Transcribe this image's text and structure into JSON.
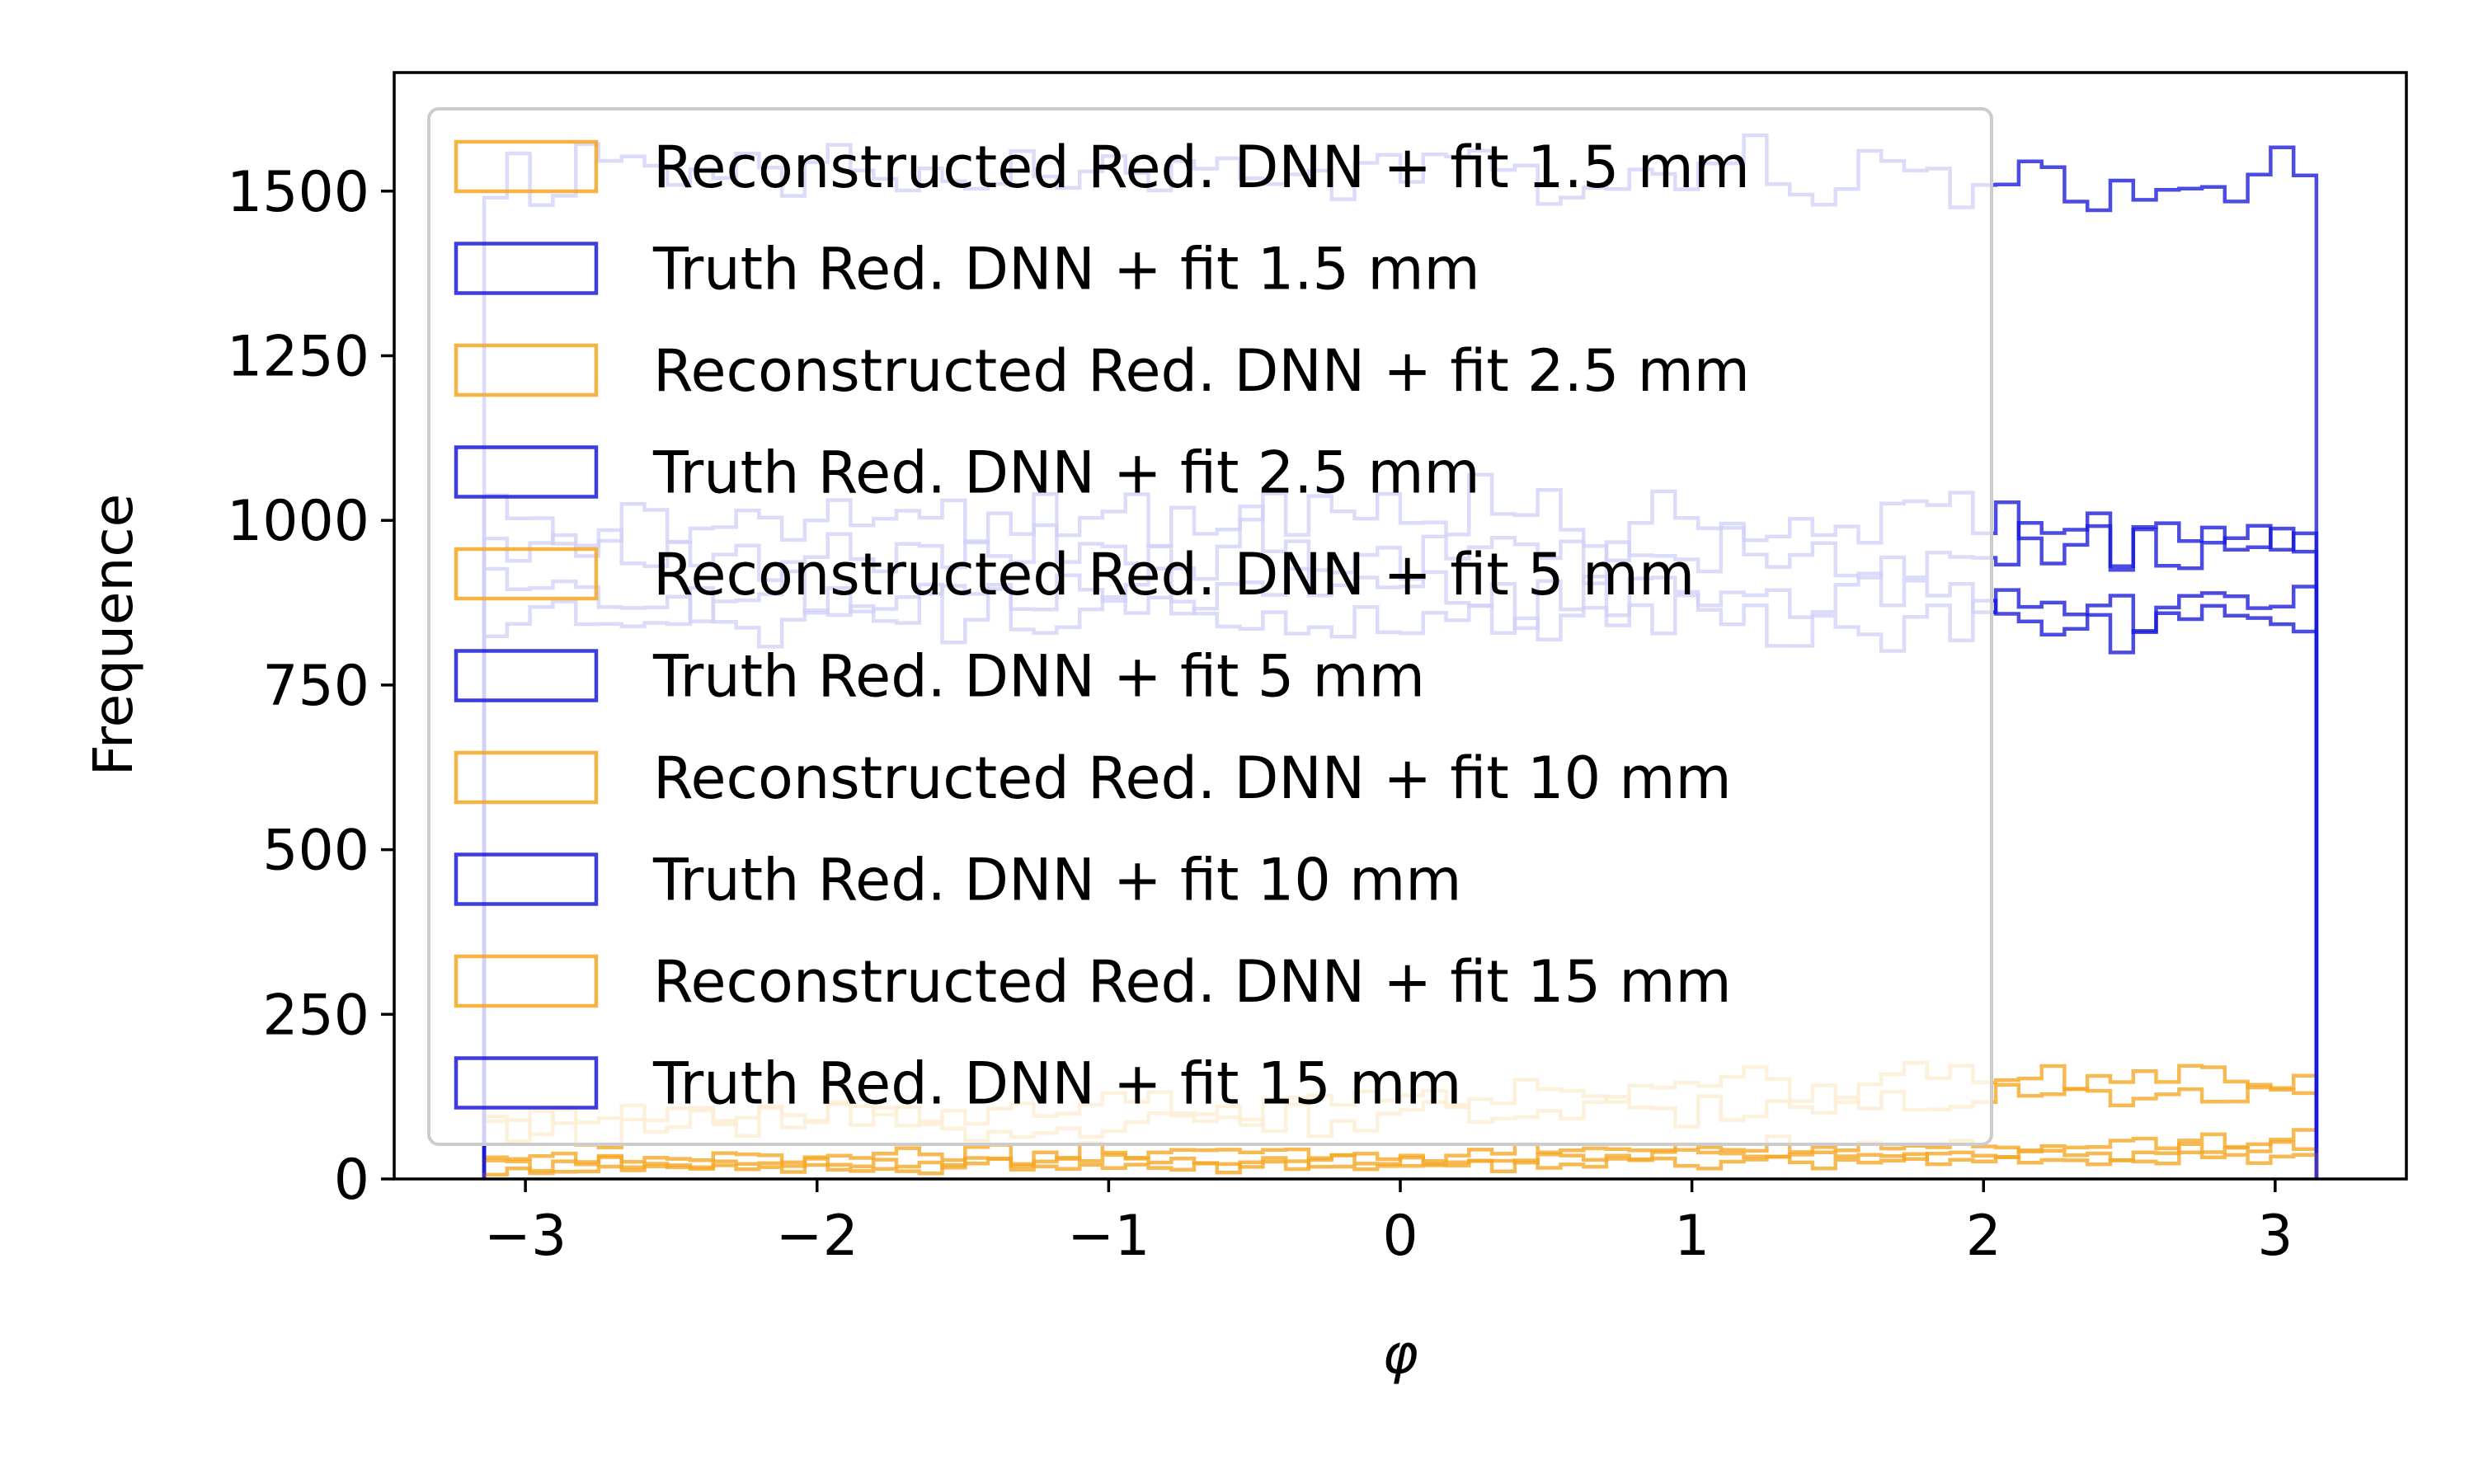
{
  "chart_data": {
    "type": "histogram-step",
    "xlabel": "φ",
    "ylabel": "Frequence",
    "xlim": [
      -3.45,
      3.45
    ],
    "ylim": [
      0,
      1680
    ],
    "xticks": [
      -3,
      -2,
      -1,
      0,
      1,
      2,
      3
    ],
    "xtick_labels": [
      "−3",
      "−2",
      "−1",
      "0",
      "1",
      "2",
      "3"
    ],
    "yticks": [
      0,
      250,
      500,
      750,
      1000,
      1250,
      1500
    ],
    "ytick_labels": [
      "0",
      "250",
      "500",
      "750",
      "1000",
      "1250",
      "1500"
    ],
    "bin_range": [
      -3.1416,
      3.1416
    ],
    "bin_count": 80,
    "legend": {
      "placement": "upper-left",
      "frame": true
    },
    "colors": {
      "reconstructed": "#f5a623",
      "truth": "#1a1adb"
    },
    "series": [
      {
        "name": "Reconstructed Red. DNN + fit 1.5 mm",
        "kind": "reconstructed",
        "color": "#f5a623",
        "profile": {
          "left": 90,
          "mid": 120,
          "right": 165
        },
        "noise": 22
      },
      {
        "name": "Truth Red. DNN + fit 1.5 mm",
        "kind": "truth",
        "color": "#1a1adb",
        "profile": {
          "left": 1520,
          "mid": 1525,
          "right": 1510
        },
        "noise": 40
      },
      {
        "name": "Reconstructed Red. DNN + fit 2.5 mm",
        "kind": "reconstructed",
        "color": "#f5a623",
        "profile": {
          "left": 70,
          "mid": 95,
          "right": 135
        },
        "noise": 20
      },
      {
        "name": "Truth Red. DNN + fit 2.5 mm",
        "kind": "truth",
        "color": "#1a1adb",
        "profile": {
          "left": 990,
          "mid": 1000,
          "right": 985
        },
        "noise": 40
      },
      {
        "name": "Reconstructed Red. DNN + fit 5 mm",
        "kind": "reconstructed",
        "color": "#f5a623",
        "profile": {
          "left": 30,
          "mid": 40,
          "right": 60
        },
        "noise": 12
      },
      {
        "name": "Truth Red. DNN + fit 5 mm",
        "kind": "truth",
        "color": "#1a1adb",
        "profile": {
          "left": 950,
          "mid": 960,
          "right": 955
        },
        "noise": 40
      },
      {
        "name": "Reconstructed Red. DNN + fit 10 mm",
        "kind": "reconstructed",
        "color": "#f5a623",
        "profile": {
          "left": 20,
          "mid": 28,
          "right": 45
        },
        "noise": 9
      },
      {
        "name": "Truth Red. DNN + fit 10 mm",
        "kind": "truth",
        "color": "#1a1adb",
        "profile": {
          "left": 880,
          "mid": 890,
          "right": 870
        },
        "noise": 38
      },
      {
        "name": "Reconstructed Red. DNN + fit 15 mm",
        "kind": "reconstructed",
        "color": "#f5a623",
        "profile": {
          "left": 15,
          "mid": 22,
          "right": 35
        },
        "noise": 8
      },
      {
        "name": "Truth Red. DNN + fit 15 mm",
        "kind": "truth",
        "color": "#1a1adb",
        "profile": {
          "left": 850,
          "mid": 860,
          "right": 845
        },
        "noise": 36
      }
    ]
  }
}
